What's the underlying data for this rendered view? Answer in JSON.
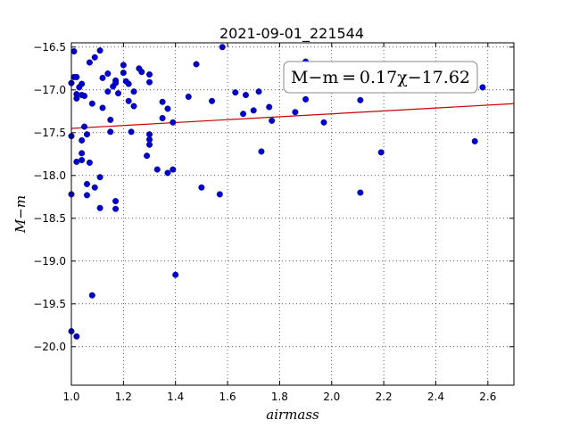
{
  "chart_data": {
    "type": "scatter",
    "title": "2021-09-01_221544",
    "xlabel": "airmass",
    "ylabel": "M−m",
    "xlim": [
      1.0,
      2.7
    ],
    "ylim": [
      -20.45,
      -16.45
    ],
    "y_inverted": true,
    "grid": true,
    "grid_style": "dotted",
    "xticks": [
      "1.0",
      "1.2",
      "1.4",
      "1.6",
      "1.8",
      "2.0",
      "2.2",
      "2.4",
      "2.6"
    ],
    "xtick_values": [
      1.0,
      1.2,
      1.4,
      1.6,
      1.8,
      2.0,
      2.2,
      2.4,
      2.6
    ],
    "yticks": [
      "−16.5",
      "−17.0",
      "−17.5",
      "−18.0",
      "−18.5",
      "−19.0",
      "−19.5",
      "−20.0"
    ],
    "ytick_values": [
      -16.5,
      -17.0,
      -17.5,
      -18.0,
      -18.5,
      -19.0,
      -19.5,
      -20.0
    ],
    "annotation": "M−m = 0.17χ−17.62",
    "colors": {
      "points": "#0000cc",
      "fit": "#cc0000"
    },
    "fit": {
      "slope": 0.17,
      "intercept": -17.62
    },
    "points": [
      [
        1.0,
        -16.92
      ],
      [
        1.01,
        -16.55
      ],
      [
        1.01,
        -16.85
      ],
      [
        1.02,
        -16.85
      ],
      [
        1.02,
        -17.05
      ],
      [
        1.02,
        -17.1
      ],
      [
        1.03,
        -16.97
      ],
      [
        1.04,
        -16.93
      ],
      [
        1.04,
        -17.06
      ],
      [
        1.05,
        -17.07
      ],
      [
        1.0,
        -17.54
      ],
      [
        1.04,
        -17.59
      ],
      [
        1.05,
        -17.43
      ],
      [
        1.06,
        -17.52
      ],
      [
        1.04,
        -17.74
      ],
      [
        1.04,
        -17.82
      ],
      [
        1.02,
        -17.84
      ],
      [
        1.07,
        -17.85
      ],
      [
        1.06,
        -18.1
      ],
      [
        1.06,
        -18.23
      ],
      [
        1.09,
        -18.14
      ],
      [
        1.0,
        -18.22
      ],
      [
        1.11,
        -18.02
      ],
      [
        1.11,
        -18.38
      ],
      [
        1.07,
        -16.68
      ],
      [
        1.09,
        -16.62
      ],
      [
        1.11,
        -16.54
      ],
      [
        1.12,
        -16.86
      ],
      [
        1.14,
        -16.81
      ],
      [
        1.08,
        -17.16
      ],
      [
        1.12,
        -17.21
      ],
      [
        1.14,
        -17.02
      ],
      [
        1.16,
        -16.96
      ],
      [
        1.17,
        -16.89
      ],
      [
        1.17,
        -16.92
      ],
      [
        1.18,
        -17.04
      ],
      [
        1.15,
        -17.35
      ],
      [
        1.15,
        -17.49
      ],
      [
        1.17,
        -18.3
      ],
      [
        1.17,
        -18.39
      ],
      [
        1.08,
        -19.4
      ],
      [
        1.0,
        -19.82
      ],
      [
        1.02,
        -19.88
      ],
      [
        1.2,
        -16.71
      ],
      [
        1.2,
        -16.8
      ],
      [
        1.21,
        -16.9
      ],
      [
        1.22,
        -16.93
      ],
      [
        1.22,
        -17.13
      ],
      [
        1.23,
        -17.49
      ],
      [
        1.24,
        -17.02
      ],
      [
        1.24,
        -17.19
      ],
      [
        1.26,
        -16.75
      ],
      [
        1.27,
        -16.79
      ],
      [
        1.29,
        -17.77
      ],
      [
        1.3,
        -16.82
      ],
      [
        1.3,
        -16.91
      ],
      [
        1.3,
        -17.52
      ],
      [
        1.3,
        -17.58
      ],
      [
        1.3,
        -17.64
      ],
      [
        1.33,
        -17.93
      ],
      [
        1.35,
        -17.14
      ],
      [
        1.35,
        -17.33
      ],
      [
        1.37,
        -17.22
      ],
      [
        1.37,
        -17.97
      ],
      [
        1.39,
        -17.38
      ],
      [
        1.39,
        -17.93
      ],
      [
        1.4,
        -19.16
      ],
      [
        1.45,
        -17.08
      ],
      [
        1.48,
        -16.7
      ],
      [
        1.5,
        -18.14
      ],
      [
        1.54,
        -17.13
      ],
      [
        1.58,
        -16.5
      ],
      [
        1.57,
        -18.22
      ],
      [
        1.63,
        -17.03
      ],
      [
        1.66,
        -17.28
      ],
      [
        1.67,
        -17.06
      ],
      [
        1.7,
        -17.24
      ],
      [
        1.72,
        -17.02
      ],
      [
        1.73,
        -17.72
      ],
      [
        1.76,
        -17.2
      ],
      [
        1.77,
        -17.36
      ],
      [
        1.86,
        -17.26
      ],
      [
        1.9,
        -16.67
      ],
      [
        1.9,
        -17.11
      ],
      [
        1.97,
        -17.38
      ],
      [
        2.11,
        -17.12
      ],
      [
        2.11,
        -18.2
      ],
      [
        2.19,
        -17.73
      ],
      [
        2.55,
        -17.6
      ],
      [
        2.58,
        -16.97
      ]
    ]
  }
}
